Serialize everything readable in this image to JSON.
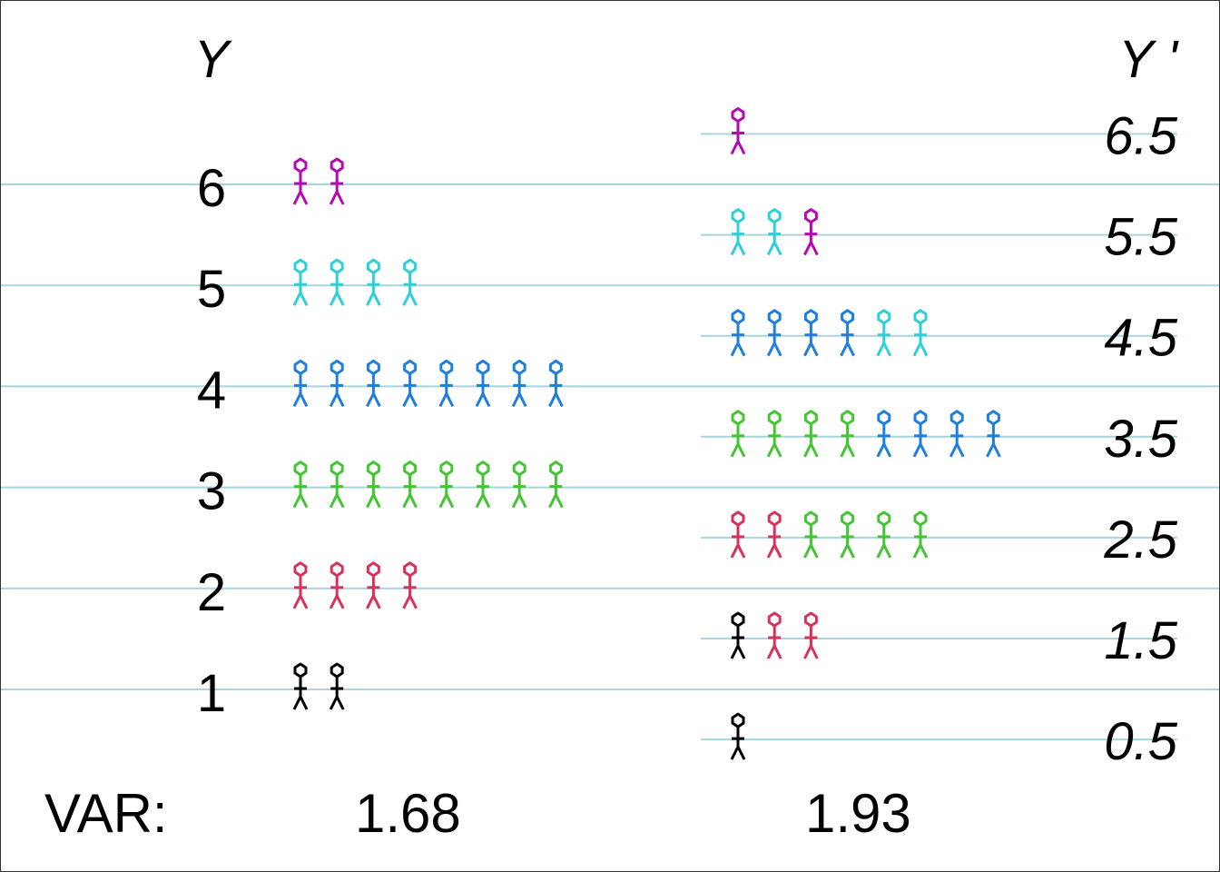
{
  "colors": {
    "grid_line": "#a8d4dc",
    "levels": {
      "1": "#000000",
      "2": "#d6335c",
      "3": "#44c534",
      "4": "#1f7fdc",
      "5": "#2ed0d6",
      "6": "#b40ab4"
    }
  },
  "left": {
    "heading": "Y",
    "rows": [
      {
        "label": "6",
        "people": [
          6,
          6
        ]
      },
      {
        "label": "5",
        "people": [
          5,
          5,
          5,
          5
        ]
      },
      {
        "label": "4",
        "people": [
          4,
          4,
          4,
          4,
          4,
          4,
          4,
          4
        ]
      },
      {
        "label": "3",
        "people": [
          3,
          3,
          3,
          3,
          3,
          3,
          3,
          3
        ]
      },
      {
        "label": "2",
        "people": [
          2,
          2,
          2,
          2
        ]
      },
      {
        "label": "1",
        "people": [
          1,
          1
        ]
      }
    ]
  },
  "right": {
    "heading": "Y '",
    "rows": [
      {
        "label": "6.5",
        "people": [
          6
        ]
      },
      {
        "label": "5.5",
        "people": [
          5,
          5,
          6
        ]
      },
      {
        "label": "4.5",
        "people": [
          4,
          4,
          4,
          4,
          5,
          5
        ]
      },
      {
        "label": "3.5",
        "people": [
          3,
          3,
          3,
          3,
          4,
          4,
          4,
          4
        ]
      },
      {
        "label": "2.5",
        "people": [
          2,
          2,
          3,
          3,
          3,
          3
        ]
      },
      {
        "label": "1.5",
        "people": [
          1,
          2,
          2
        ]
      },
      {
        "label": "0.5",
        "people": [
          1
        ]
      }
    ]
  },
  "variance": {
    "label": "VAR:",
    "y_value": "1.68",
    "y_prime_value": "1.93"
  }
}
